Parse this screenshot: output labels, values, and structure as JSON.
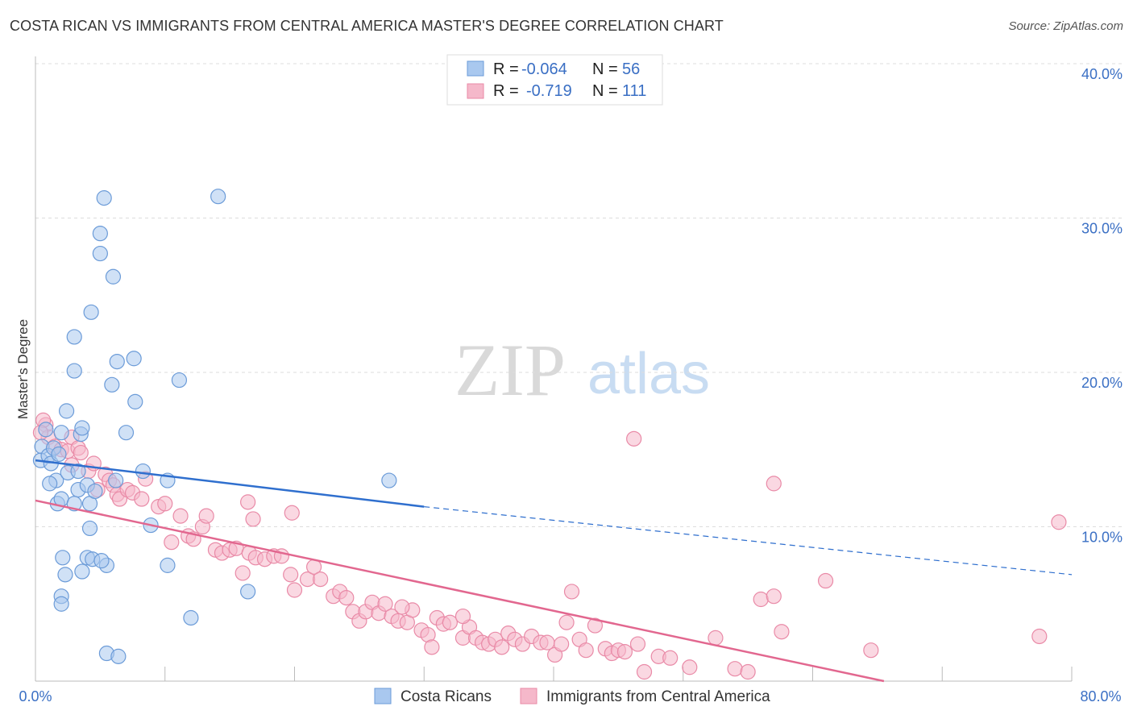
{
  "header": {
    "title": "COSTA RICAN VS IMMIGRANTS FROM CENTRAL AMERICA MASTER'S DEGREE CORRELATION CHART",
    "source": "Source: ZipAtlas.com"
  },
  "watermark": {
    "zip": "ZIP",
    "atlas": "atlas"
  },
  "colors": {
    "blue_fill": "#a9c8ef",
    "blue_stroke": "#6b9bd8",
    "blue_line": "#2f6fce",
    "pink_fill": "#f5b8ca",
    "pink_stroke": "#e98aa7",
    "pink_line": "#e2678f",
    "tick_text": "#3a6fc4",
    "grid": "#dddddd"
  },
  "chart_data": {
    "type": "scatter",
    "title": "COSTA RICAN VS IMMIGRANTS FROM CENTRAL AMERICA MASTER'S DEGREE CORRELATION CHART",
    "xlabel": "",
    "ylabel": "Master's Degree",
    "xlim": [
      0,
      80
    ],
    "ylim": [
      0,
      40
    ],
    "x_tick_labels": {
      "left": "0.0%",
      "right": "80.0%"
    },
    "y_ticks": [
      {
        "value": 10,
        "label": "10.0%"
      },
      {
        "value": 20,
        "label": "20.0%"
      },
      {
        "value": 30,
        "label": "30.0%"
      },
      {
        "value": 40,
        "label": "40.0%"
      }
    ],
    "legend": {
      "position": "top-center",
      "rows": [
        {
          "r_label": "R =",
          "r_value": "-0.064",
          "n_label": "N =",
          "n_value": "56"
        },
        {
          "r_label": "R =",
          "r_value": "-0.719",
          "n_label": "N =",
          "n_value": "111"
        }
      ]
    },
    "series": [
      {
        "name": "Costa Ricans",
        "color": "#a9c8ef",
        "trend": {
          "x_start": 0,
          "y_start": 14.3,
          "x_solid_end": 30,
          "y_solid_end": 11.3,
          "x_dash_end": 80,
          "y_dash_end": 6.9
        },
        "points": [
          [
            0.5,
            15.2
          ],
          [
            0.4,
            14.3
          ],
          [
            0.8,
            16.3
          ],
          [
            1.0,
            14.6
          ],
          [
            1.2,
            14.1
          ],
          [
            1.4,
            15.1
          ],
          [
            1.6,
            13.0
          ],
          [
            1.8,
            14.7
          ],
          [
            1.1,
            12.8
          ],
          [
            2.0,
            16.1
          ],
          [
            2.5,
            13.5
          ],
          [
            1.7,
            11.5
          ],
          [
            2.0,
            11.8
          ],
          [
            2.4,
            17.5
          ],
          [
            3.5,
            16.0
          ],
          [
            3.0,
            11.5
          ],
          [
            2.3,
            6.9
          ],
          [
            3.6,
            7.1
          ],
          [
            2.0,
            5.5
          ],
          [
            2.0,
            5.0
          ],
          [
            2.1,
            8.0
          ],
          [
            3.3,
            12.4
          ],
          [
            3.6,
            16.4
          ],
          [
            4.0,
            12.7
          ],
          [
            4.2,
            9.9
          ],
          [
            4.0,
            8.0
          ],
          [
            4.2,
            11.5
          ],
          [
            4.6,
            12.3
          ],
          [
            4.4,
            7.9
          ],
          [
            5.5,
            7.5
          ],
          [
            5.1,
            7.8
          ],
          [
            6.2,
            13.0
          ],
          [
            7.0,
            16.1
          ],
          [
            7.7,
            18.1
          ],
          [
            7.6,
            20.9
          ],
          [
            6.3,
            20.7
          ],
          [
            5.9,
            19.2
          ],
          [
            4.3,
            23.9
          ],
          [
            3.0,
            22.3
          ],
          [
            3.0,
            20.1
          ],
          [
            5.0,
            27.7
          ],
          [
            6.0,
            26.2
          ],
          [
            5.0,
            29.0
          ],
          [
            5.3,
            31.3
          ],
          [
            3.3,
            13.6
          ],
          [
            8.3,
            13.6
          ],
          [
            8.9,
            10.1
          ],
          [
            10.2,
            13.0
          ],
          [
            10.2,
            7.5
          ],
          [
            11.1,
            19.5
          ],
          [
            12.0,
            4.1
          ],
          [
            14.1,
            31.4
          ],
          [
            16.4,
            5.8
          ],
          [
            27.3,
            13.0
          ],
          [
            5.5,
            1.8
          ],
          [
            6.4,
            1.6
          ]
        ]
      },
      {
        "name": "Immigrants from Central America",
        "color": "#f5b8ca",
        "trend": {
          "x_start": 0,
          "y_start": 11.7,
          "x_end": 65.5,
          "y_end": 0.0
        },
        "points": [
          [
            0.8,
            16.6
          ],
          [
            1.0,
            15.8
          ],
          [
            1.5,
            15.2
          ],
          [
            2.0,
            15.0
          ],
          [
            2.5,
            14.9
          ],
          [
            2.8,
            15.8
          ],
          [
            3.3,
            15.1
          ],
          [
            3.5,
            14.8
          ],
          [
            4.1,
            13.6
          ],
          [
            4.5,
            14.1
          ],
          [
            4.8,
            12.4
          ],
          [
            5.4,
            13.4
          ],
          [
            5.7,
            13.0
          ],
          [
            6.0,
            12.7
          ],
          [
            6.3,
            12.1
          ],
          [
            6.5,
            11.8
          ],
          [
            7.1,
            12.4
          ],
          [
            7.5,
            12.2
          ],
          [
            8.2,
            11.8
          ],
          [
            8.5,
            13.1
          ],
          [
            9.5,
            11.3
          ],
          [
            10.0,
            11.5
          ],
          [
            10.5,
            9.0
          ],
          [
            11.2,
            10.7
          ],
          [
            11.8,
            9.4
          ],
          [
            12.2,
            9.2
          ],
          [
            12.9,
            10.0
          ],
          [
            13.2,
            10.7
          ],
          [
            13.9,
            8.5
          ],
          [
            14.4,
            8.3
          ],
          [
            15.0,
            8.5
          ],
          [
            15.5,
            8.6
          ],
          [
            16.0,
            7.0
          ],
          [
            16.5,
            8.3
          ],
          [
            17.0,
            8.0
          ],
          [
            17.7,
            7.9
          ],
          [
            18.4,
            8.1
          ],
          [
            19.0,
            8.1
          ],
          [
            19.7,
            6.9
          ],
          [
            20.0,
            5.9
          ],
          [
            21.0,
            6.6
          ],
          [
            21.5,
            7.4
          ],
          [
            22.0,
            6.6
          ],
          [
            23.0,
            5.5
          ],
          [
            23.5,
            5.8
          ],
          [
            24.0,
            5.4
          ],
          [
            24.5,
            4.5
          ],
          [
            25.0,
            3.9
          ],
          [
            25.5,
            4.5
          ],
          [
            26.0,
            5.1
          ],
          [
            26.5,
            4.4
          ],
          [
            27.0,
            5.0
          ],
          [
            27.5,
            4.2
          ],
          [
            28.0,
            3.9
          ],
          [
            28.7,
            3.8
          ],
          [
            29.1,
            4.6
          ],
          [
            29.8,
            3.3
          ],
          [
            30.3,
            3.0
          ],
          [
            30.6,
            2.2
          ],
          [
            31.0,
            4.1
          ],
          [
            31.5,
            3.7
          ],
          [
            32.0,
            3.8
          ],
          [
            33.0,
            2.8
          ],
          [
            33.5,
            3.5
          ],
          [
            34.0,
            2.8
          ],
          [
            34.5,
            2.5
          ],
          [
            35.0,
            2.4
          ],
          [
            35.5,
            2.7
          ],
          [
            36.0,
            2.2
          ],
          [
            36.5,
            3.1
          ],
          [
            37.0,
            2.7
          ],
          [
            37.6,
            2.4
          ],
          [
            38.3,
            2.9
          ],
          [
            39.0,
            2.5
          ],
          [
            39.5,
            2.5
          ],
          [
            40.1,
            1.7
          ],
          [
            40.6,
            2.4
          ],
          [
            41.0,
            3.8
          ],
          [
            42.0,
            2.7
          ],
          [
            42.5,
            2.0
          ],
          [
            43.2,
            3.6
          ],
          [
            44.0,
            2.1
          ],
          [
            44.5,
            1.8
          ],
          [
            45.0,
            2.0
          ],
          [
            45.5,
            1.9
          ],
          [
            46.5,
            2.4
          ],
          [
            47.0,
            0.6
          ],
          [
            48.1,
            1.6
          ],
          [
            49.0,
            1.5
          ],
          [
            50.5,
            0.9
          ],
          [
            52.5,
            2.8
          ],
          [
            54.0,
            0.8
          ],
          [
            55.0,
            0.6
          ],
          [
            56.0,
            5.3
          ],
          [
            57.0,
            5.5
          ],
          [
            57.6,
            3.2
          ],
          [
            61.0,
            6.5
          ],
          [
            64.5,
            2.0
          ],
          [
            77.5,
            2.9
          ],
          [
            79.0,
            10.3
          ],
          [
            16.4,
            11.6
          ],
          [
            16.8,
            10.5
          ],
          [
            19.8,
            10.9
          ],
          [
            28.3,
            4.8
          ],
          [
            33.0,
            4.2
          ],
          [
            41.4,
            5.8
          ],
          [
            46.2,
            15.7
          ],
          [
            57.0,
            12.8
          ],
          [
            2.8,
            14.0
          ],
          [
            0.6,
            16.9
          ],
          [
            0.4,
            16.1
          ]
        ]
      }
    ]
  },
  "bottom_legend": [
    {
      "label": "Costa Ricans"
    },
    {
      "label": "Immigrants from Central America"
    }
  ]
}
